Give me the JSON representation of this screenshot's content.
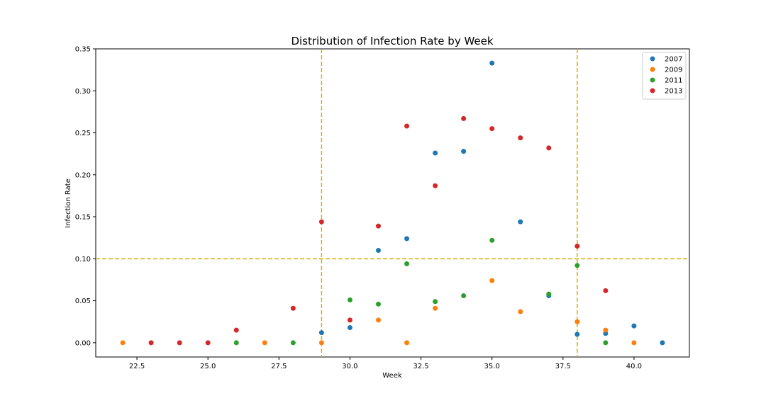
{
  "chart_data": {
    "type": "scatter",
    "title": "Distribution of Infection Rate by Week",
    "xlabel": "Week",
    "ylabel": "Infection Rate",
    "xlim": [
      21.05,
      41.95
    ],
    "ylim": [
      -0.017,
      0.35
    ],
    "x_ticks": [
      22.5,
      25.0,
      27.5,
      30.0,
      32.5,
      35.0,
      37.5,
      40.0
    ],
    "x_tick_labels": [
      "22.5",
      "25.0",
      "27.5",
      "30.0",
      "32.5",
      "35.0",
      "37.5",
      "40.0"
    ],
    "y_ticks": [
      0.0,
      0.05,
      0.1,
      0.15,
      0.2,
      0.25,
      0.3,
      0.35
    ],
    "y_tick_labels": [
      "0.00",
      "0.05",
      "0.10",
      "0.15",
      "0.20",
      "0.25",
      "0.30",
      "0.35"
    ],
    "grid": false,
    "legend_position": "top-right",
    "reference_lines": {
      "vertical_x": [
        29,
        38
      ],
      "horizontal_y": [
        0.1
      ],
      "color": "#d4b000"
    },
    "series": [
      {
        "name": "2007",
        "color": "#1f77b4",
        "points": [
          [
            29,
            0.012
          ],
          [
            30,
            0.018
          ],
          [
            31,
            0.11
          ],
          [
            32,
            0.124
          ],
          [
            33,
            0.226
          ],
          [
            34,
            0.228
          ],
          [
            35,
            0.333
          ],
          [
            36,
            0.144
          ],
          [
            37,
            0.056
          ],
          [
            38,
            0.01
          ],
          [
            39,
            0.011
          ],
          [
            40,
            0.02
          ],
          [
            41,
            0.0
          ]
        ]
      },
      {
        "name": "2009",
        "color": "#ff7f0e",
        "points": [
          [
            22,
            0.0
          ],
          [
            27,
            0.0
          ],
          [
            29,
            0.0
          ],
          [
            31,
            0.027
          ],
          [
            32,
            0.0
          ],
          [
            33,
            0.041
          ],
          [
            35,
            0.074
          ],
          [
            36,
            0.037
          ],
          [
            38,
            0.025
          ],
          [
            39,
            0.015
          ],
          [
            40,
            0.0
          ]
        ]
      },
      {
        "name": "2011",
        "color": "#2ca02c",
        "points": [
          [
            26,
            0.0
          ],
          [
            28,
            0.0
          ],
          [
            30,
            0.051
          ],
          [
            31,
            0.046
          ],
          [
            32,
            0.094
          ],
          [
            33,
            0.049
          ],
          [
            34,
            0.056
          ],
          [
            35,
            0.122
          ],
          [
            37,
            0.058
          ],
          [
            38,
            0.092
          ],
          [
            39,
            0.0
          ]
        ]
      },
      {
        "name": "2013",
        "color": "#d62728",
        "points": [
          [
            23,
            0.0
          ],
          [
            24,
            0.0
          ],
          [
            25,
            0.0
          ],
          [
            26,
            0.015
          ],
          [
            28,
            0.041
          ],
          [
            29,
            0.144
          ],
          [
            30,
            0.027
          ],
          [
            31,
            0.139
          ],
          [
            32,
            0.258
          ],
          [
            33,
            0.187
          ],
          [
            34,
            0.267
          ],
          [
            35,
            0.255
          ],
          [
            36,
            0.244
          ],
          [
            37,
            0.232
          ],
          [
            38,
            0.115
          ],
          [
            39,
            0.062
          ]
        ]
      }
    ]
  }
}
